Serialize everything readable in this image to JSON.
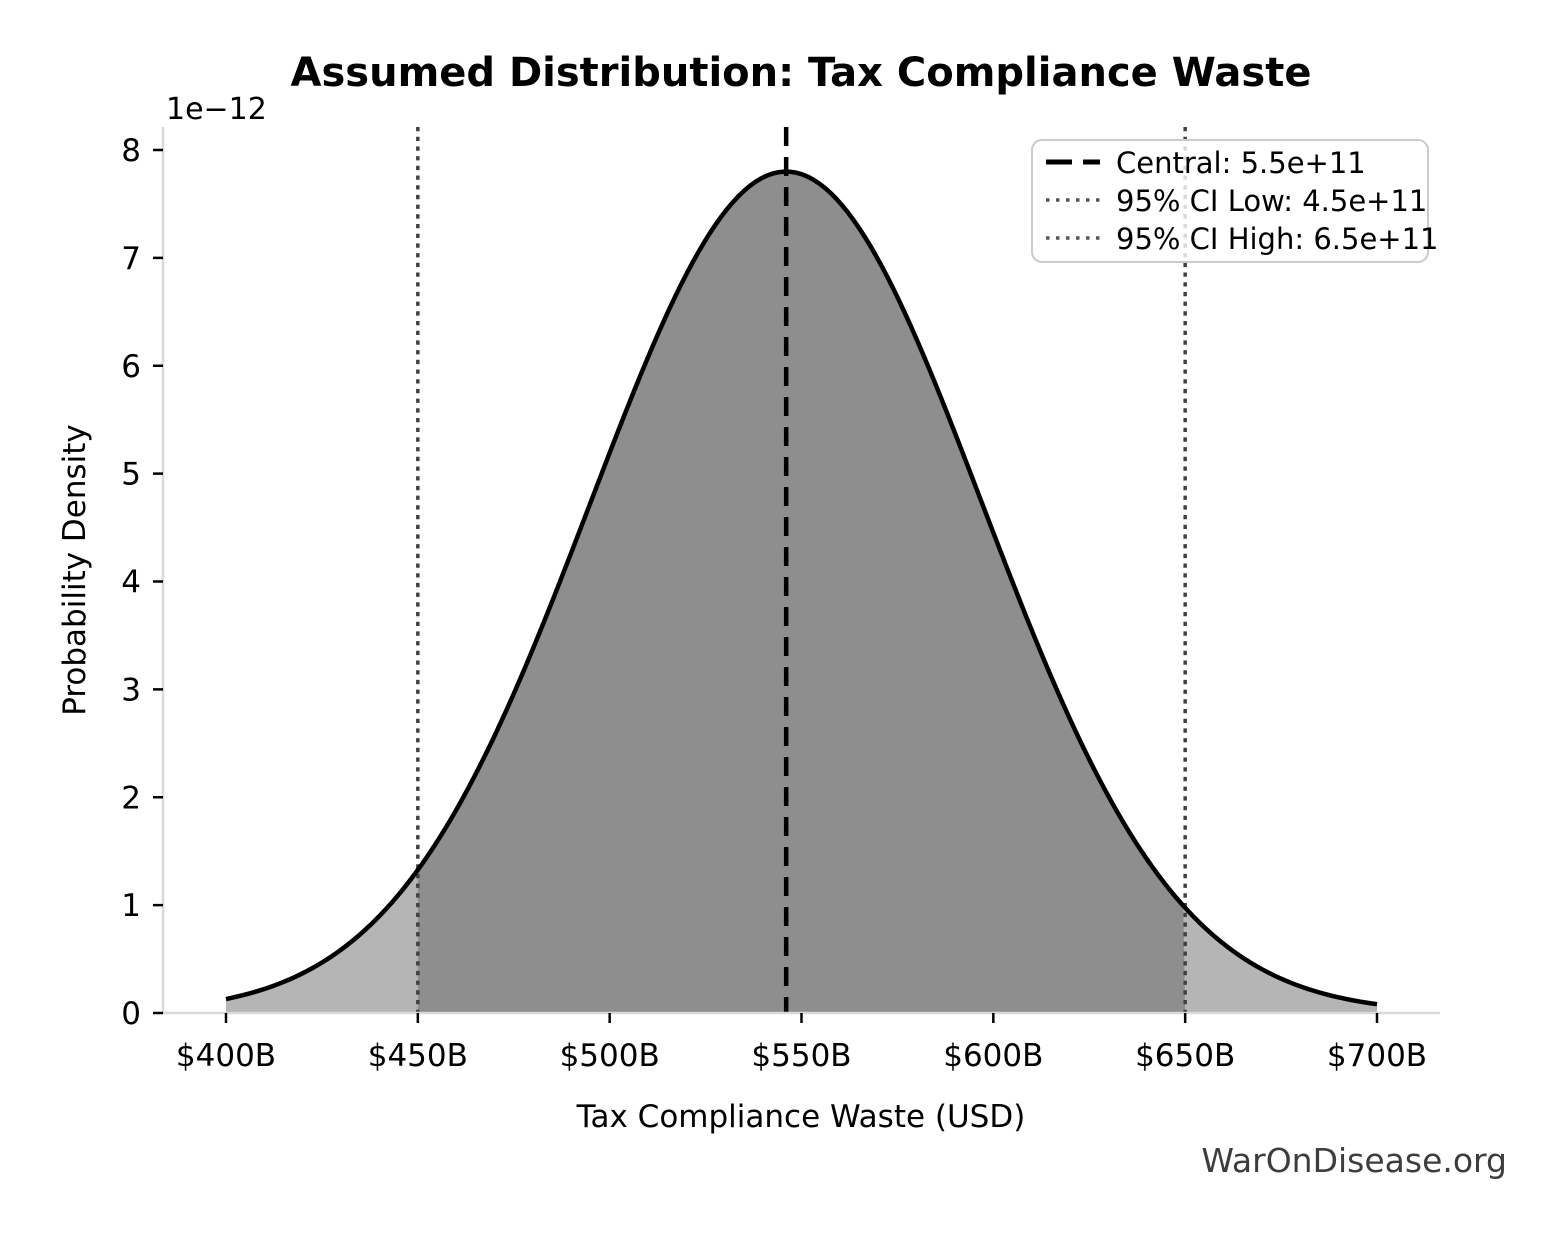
{
  "title": "Assumed Distribution: Tax Compliance Waste",
  "watermark": "WarOnDisease.org",
  "axes": {
    "x_label": "Tax Compliance Waste (USD)",
    "y_label": "Probability Density",
    "y_offset_label": "1e−12",
    "x_ticks": [
      {
        "label": "$400B",
        "value_billion": 400
      },
      {
        "label": "$450B",
        "value_billion": 450
      },
      {
        "label": "$500B",
        "value_billion": 500
      },
      {
        "label": "$550B",
        "value_billion": 550
      },
      {
        "label": "$600B",
        "value_billion": 600
      },
      {
        "label": "$650B",
        "value_billion": 650
      },
      {
        "label": "$700B",
        "value_billion": 700
      }
    ],
    "y_ticks": [
      {
        "label": "0",
        "value": 0
      },
      {
        "label": "1",
        "value": 1
      },
      {
        "label": "2",
        "value": 2
      },
      {
        "label": "3",
        "value": 3
      },
      {
        "label": "4",
        "value": 4
      },
      {
        "label": "5",
        "value": 5
      },
      {
        "label": "6",
        "value": 6
      },
      {
        "label": "7",
        "value": 7
      },
      {
        "label": "8",
        "value": 8
      }
    ]
  },
  "legend": {
    "items": [
      {
        "label": "Central: 5.5e+11",
        "style": "dashed",
        "color": "#000000"
      },
      {
        "label": "95% CI Low: 4.5e+11",
        "style": "dotted",
        "color": "#555555"
      },
      {
        "label": "95% CI High: 6.5e+11",
        "style": "dotted",
        "color": "#555555"
      }
    ]
  },
  "chart_data": {
    "type": "area",
    "title": "Assumed Distribution: Tax Compliance Waste",
    "xlabel": "Tax Compliance Waste (USD)",
    "ylabel": "Probability Density",
    "y_scale_factor": "1e-12",
    "x_unit": "USD billions",
    "y_unit": "probability density in units of 1e-12",
    "xlim_billion": [
      383.6,
      716.4
    ],
    "ylim_e12": [
      0,
      8.21
    ],
    "x_data_range_billion": [
      400,
      700
    ],
    "central_value": "5.5e+11",
    "ci_low_value": "4.5e+11",
    "ci_high_value": "6.5e+11",
    "central_line_x_billion": 546,
    "ci_low_line_x_billion": 450,
    "ci_high_line_x_billion": 650,
    "curve_model": {
      "shape": "gaussian",
      "peak_x_billion": 546,
      "peak_density_e12": 7.8,
      "sigma_billion": 51
    },
    "curve_points": [
      [
        400,
        0.13
      ],
      [
        410,
        0.22
      ],
      [
        420,
        0.37
      ],
      [
        430,
        0.6
      ],
      [
        440,
        0.9
      ],
      [
        450,
        1.33
      ],
      [
        460,
        1.88
      ],
      [
        470,
        2.57
      ],
      [
        480,
        3.38
      ],
      [
        490,
        4.27
      ],
      [
        500,
        5.19
      ],
      [
        510,
        6.07
      ],
      [
        520,
        6.85
      ],
      [
        530,
        7.44
      ],
      [
        540,
        7.75
      ],
      [
        546,
        7.8
      ],
      [
        550,
        7.78
      ],
      [
        560,
        7.51
      ],
      [
        570,
        6.97
      ],
      [
        580,
        6.25
      ],
      [
        590,
        5.38
      ],
      [
        600,
        4.45
      ],
      [
        610,
        3.55
      ],
      [
        620,
        2.72
      ],
      [
        630,
        2.01
      ],
      [
        640,
        1.43
      ],
      [
        650,
        0.98
      ],
      [
        660,
        0.64
      ],
      [
        670,
        0.41
      ],
      [
        680,
        0.25
      ],
      [
        690,
        0.15
      ],
      [
        700,
        0.08
      ]
    ],
    "legend_position": "upper right",
    "grid": false,
    "colors": {
      "curve_line": "#000000",
      "fill_tails": "#b5b5b5",
      "fill_ci_region": "#8e8e8e",
      "central_dashed_line": "#000000",
      "ci_dotted_lines": "#404040",
      "spines": "#d9d9d9",
      "tick_marks": "#000000",
      "legend_border": "#cbcbcb",
      "watermark": "#3d3d3d"
    }
  }
}
